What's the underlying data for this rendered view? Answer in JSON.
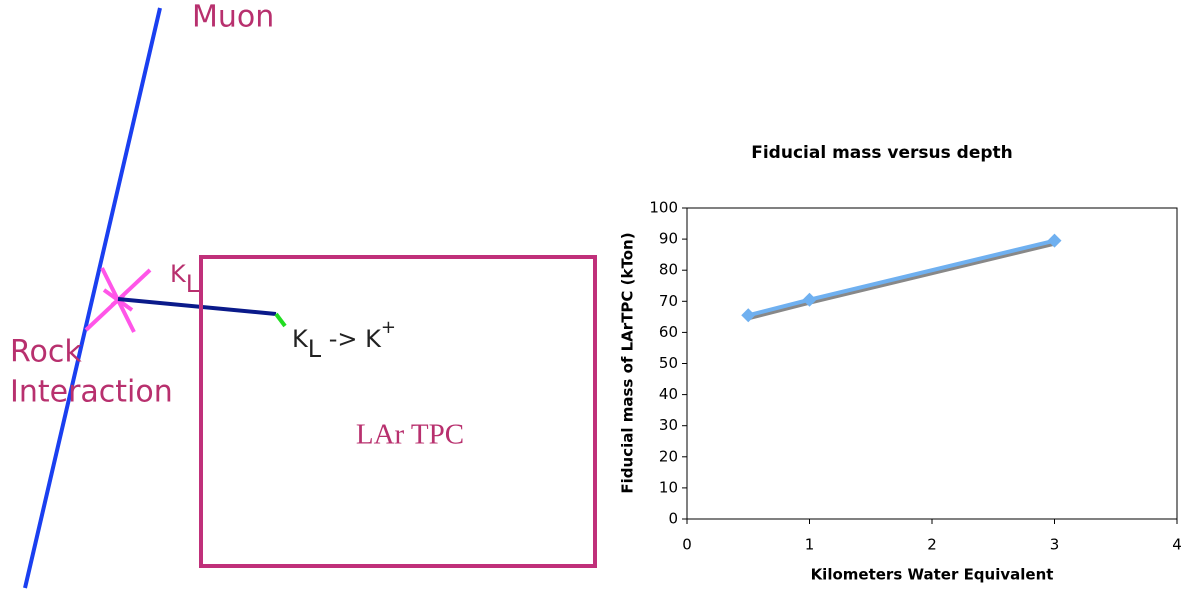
{
  "diagram": {
    "muon": "Muon",
    "kl_label": {
      "base": "K",
      "sub": "L"
    },
    "rock": "Rock",
    "interaction": "Interaction",
    "decay": {
      "base": "K",
      "sub": "L",
      "arrow": " -> K",
      "sup": "+"
    },
    "detector": "LAr TPC"
  },
  "chart_data": {
    "type": "line",
    "title": "Fiducial mass versus depth",
    "x_label": "Kilometers Water Equivalent",
    "y_label": "Fiducial mass of LArTPC (kTon)",
    "x": [
      0.5,
      1,
      3
    ],
    "series": [
      {
        "color": "#6fb0f0",
        "values": [
          65.5,
          70.5,
          89.5
        ]
      }
    ],
    "xlim": [
      0,
      4
    ],
    "xticks": [
      0,
      1,
      2,
      3,
      4
    ],
    "ylim": [
      0,
      100
    ],
    "yticks": [
      0,
      10,
      20,
      30,
      40,
      50,
      60,
      70,
      80,
      90,
      100
    ]
  }
}
